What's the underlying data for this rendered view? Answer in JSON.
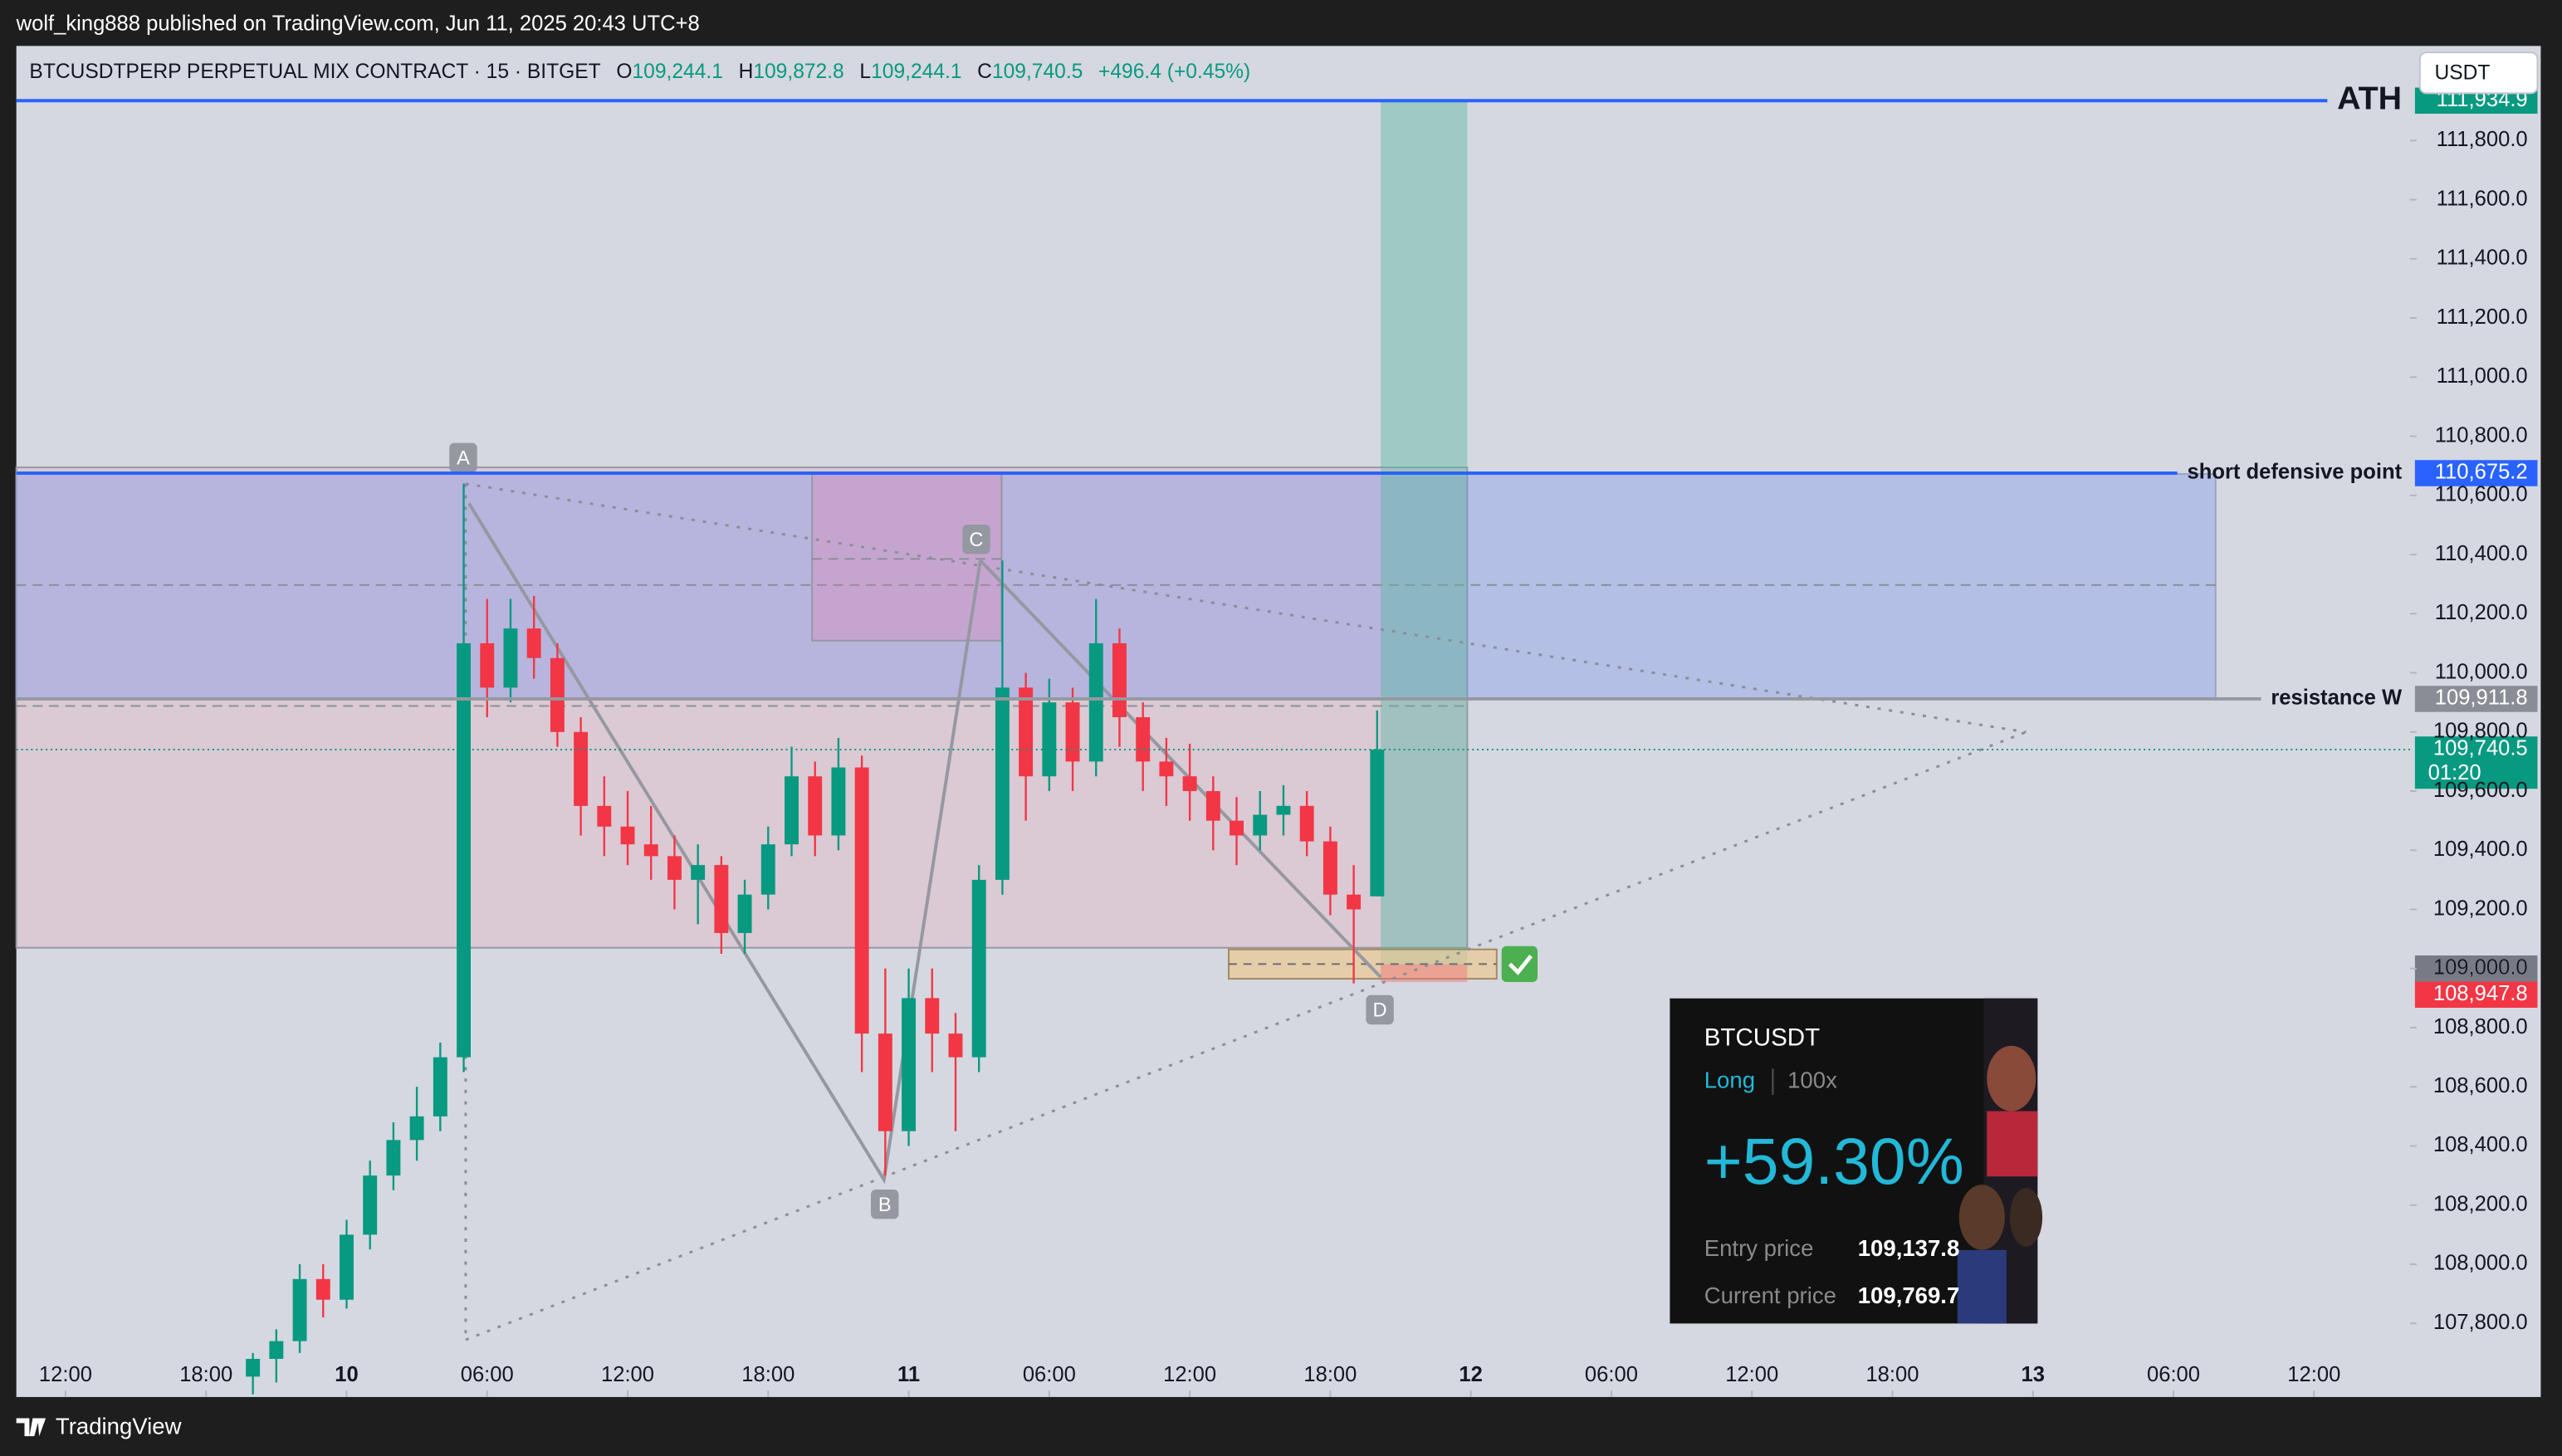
{
  "top_bar": {
    "text": "wolf_king888 published on TradingView.com, Jun 11, 2025 20:43 UTC+8"
  },
  "header": {
    "symbol": "BTCUSDTPERP PERPETUAL MIX CONTRACT · 15 · BITGET",
    "ohlc": [
      {
        "key": "O",
        "value": "109,244.1"
      },
      {
        "key": "H",
        "value": "109,872.8"
      },
      {
        "key": "L",
        "value": "109,244.1"
      },
      {
        "key": "C",
        "value": "109,740.5"
      }
    ],
    "change": "+496.4 (+0.45%)",
    "currency": "USDT"
  },
  "chart_data": {
    "type": "candlestick",
    "xlim": [
      9.9,
      112.1
    ],
    "xticks": [
      {
        "value": 12,
        "label": "12:00"
      },
      {
        "value": 18,
        "label": "18:00"
      },
      {
        "value": 24,
        "label": "10"
      },
      {
        "value": 30,
        "label": "06:00"
      },
      {
        "value": 36,
        "label": "12:00"
      },
      {
        "value": 42,
        "label": "18:00"
      },
      {
        "value": 48,
        "label": "11"
      },
      {
        "value": 54,
        "label": "06:00"
      },
      {
        "value": 60,
        "label": "12:00"
      },
      {
        "value": 66,
        "label": "18:00"
      },
      {
        "value": 72,
        "label": "12"
      },
      {
        "value": 78,
        "label": "06:00"
      },
      {
        "value": 84,
        "label": "12:00"
      },
      {
        "value": 90,
        "label": "18:00"
      },
      {
        "value": 96,
        "label": "13"
      },
      {
        "value": 102,
        "label": "06:00"
      },
      {
        "value": 108,
        "label": "12:00"
      }
    ],
    "ylim": [
      107551,
      112120
    ],
    "yticks": [
      {
        "value": 107800,
        "label": "107,800.0"
      },
      {
        "value": 108000,
        "label": "108,000.0"
      },
      {
        "value": 108200,
        "label": "108,200.0"
      },
      {
        "value": 108400,
        "label": "108,400.0"
      },
      {
        "value": 108600,
        "label": "108,600.0"
      },
      {
        "value": 108800,
        "label": "108,800.0"
      },
      {
        "value": 109000,
        "label": "109,000.0"
      },
      {
        "value": 109200,
        "label": "109,200.0"
      },
      {
        "value": 109400,
        "label": "109,400.0"
      },
      {
        "value": 109600,
        "label": "109,600.0"
      },
      {
        "value": 109800,
        "label": "109,800.0"
      },
      {
        "value": 110000,
        "label": "110,000.0"
      },
      {
        "value": 110200,
        "label": "110,200.0"
      },
      {
        "value": 110400,
        "label": "110,400.0"
      },
      {
        "value": 110600,
        "label": "110,600.0"
      },
      {
        "value": 110800,
        "label": "110,800.0"
      },
      {
        "value": 111000,
        "label": "111,000.0"
      },
      {
        "value": 111200,
        "label": "111,200.0"
      },
      {
        "value": 111400,
        "label": "111,400.0"
      },
      {
        "value": 111600,
        "label": "111,600.0"
      },
      {
        "value": 111800,
        "label": "111,800.0"
      }
    ],
    "grid": false,
    "up_color": "#089981",
    "down_color": "#f23645",
    "candles": {
      "x": [
        20,
        21,
        22,
        23,
        24,
        25,
        26,
        27,
        28,
        29,
        30,
        31,
        32,
        33,
        34,
        35,
        36,
        37,
        38,
        39,
        40,
        41,
        42,
        43,
        44,
        45,
        46,
        47,
        48,
        49,
        50,
        51,
        52,
        53,
        54,
        55,
        56,
        57,
        58,
        59,
        60,
        61,
        62,
        63,
        64,
        65,
        66,
        67,
        68
      ],
      "open": [
        107620,
        107680,
        107740,
        107950,
        107880,
        108100,
        108300,
        108420,
        108500,
        108700,
        110100,
        109950,
        110150,
        110050,
        109800,
        109550,
        109480,
        109420,
        109380,
        109300,
        109350,
        109120,
        109250,
        109420,
        109650,
        109450,
        109680,
        108780,
        108450,
        108900,
        108780,
        108700,
        109300,
        109950,
        109650,
        109900,
        109700,
        110100,
        109850,
        109700,
        109650,
        109600,
        109500,
        109450,
        109520,
        109550,
        109430,
        109250,
        109244.1
      ],
      "high": [
        107700,
        107780,
        108000,
        108000,
        108150,
        108350,
        108480,
        108600,
        108750,
        110640,
        110250,
        110250,
        110260,
        110100,
        109850,
        109650,
        109600,
        109550,
        109450,
        109420,
        109380,
        109300,
        109480,
        109750,
        109700,
        109780,
        109720,
        109000,
        109000,
        109000,
        108850,
        109350,
        110380,
        110000,
        109980,
        109950,
        110250,
        110150,
        109900,
        109780,
        109760,
        109650,
        109580,
        109600,
        109620,
        109600,
        109480,
        109350,
        109872.8
      ],
      "low": [
        107560,
        107600,
        107700,
        107820,
        107850,
        108050,
        108250,
        108350,
        108450,
        108650,
        109850,
        109900,
        109980,
        109750,
        109450,
        109380,
        109350,
        109300,
        109200,
        109150,
        109050,
        109050,
        109200,
        109380,
        109380,
        109400,
        108650,
        108300,
        108400,
        108650,
        108450,
        108650,
        109250,
        109500,
        109600,
        109600,
        109650,
        109750,
        109600,
        109550,
        109500,
        109400,
        109350,
        109400,
        109450,
        109380,
        109180,
        108950,
        109244.1
      ],
      "close": [
        107680,
        107740,
        107950,
        107880,
        108100,
        108300,
        108420,
        108500,
        108700,
        110100,
        109950,
        110150,
        110050,
        109800,
        109550,
        109480,
        109420,
        109380,
        109300,
        109350,
        109120,
        109250,
        109420,
        109650,
        109450,
        109680,
        108780,
        108450,
        108900,
        108780,
        108700,
        109300,
        109950,
        109650,
        109900,
        109700,
        110100,
        109850,
        109700,
        109650,
        109600,
        109500,
        109450,
        109520,
        109550,
        109430,
        109250,
        109200,
        109740.5
      ]
    },
    "levels": [
      {
        "value": 111934.9,
        "label": "111,934.9",
        "color": "#089981",
        "line_color": "#2962ff",
        "text": "ATH"
      },
      {
        "value": 110675.2,
        "label": "110,675.2",
        "color": "#2962ff",
        "line_color": "#2962ff",
        "text": "short defensive point"
      },
      {
        "value": 109911.8,
        "label": "109,911.8",
        "color": "#8a8d96",
        "line_color": "#9598a1",
        "text": "resistance W"
      },
      {
        "value": 109740.5,
        "label": "109,740.5",
        "color": "#089981",
        "line_color": "#089981",
        "countdown": "01:20",
        "style": "dotted"
      },
      {
        "value": 109000,
        "label": "109,000.0",
        "color": "#787b86"
      },
      {
        "value": 108947.8,
        "label": "108,947.8",
        "color": "#f23645"
      }
    ],
    "pattern_labels": [
      "A",
      "B",
      "C",
      "D"
    ]
  },
  "position_card": {
    "symbol": "BTCUSDT",
    "side": "Long",
    "leverage": "100x",
    "pnl": "+59.30%",
    "entry_label": "Entry price",
    "entry_price": "109,137.8",
    "current_label": "Current price",
    "current_price": "109,769.7"
  },
  "footer": {
    "brand": "TradingView"
  }
}
